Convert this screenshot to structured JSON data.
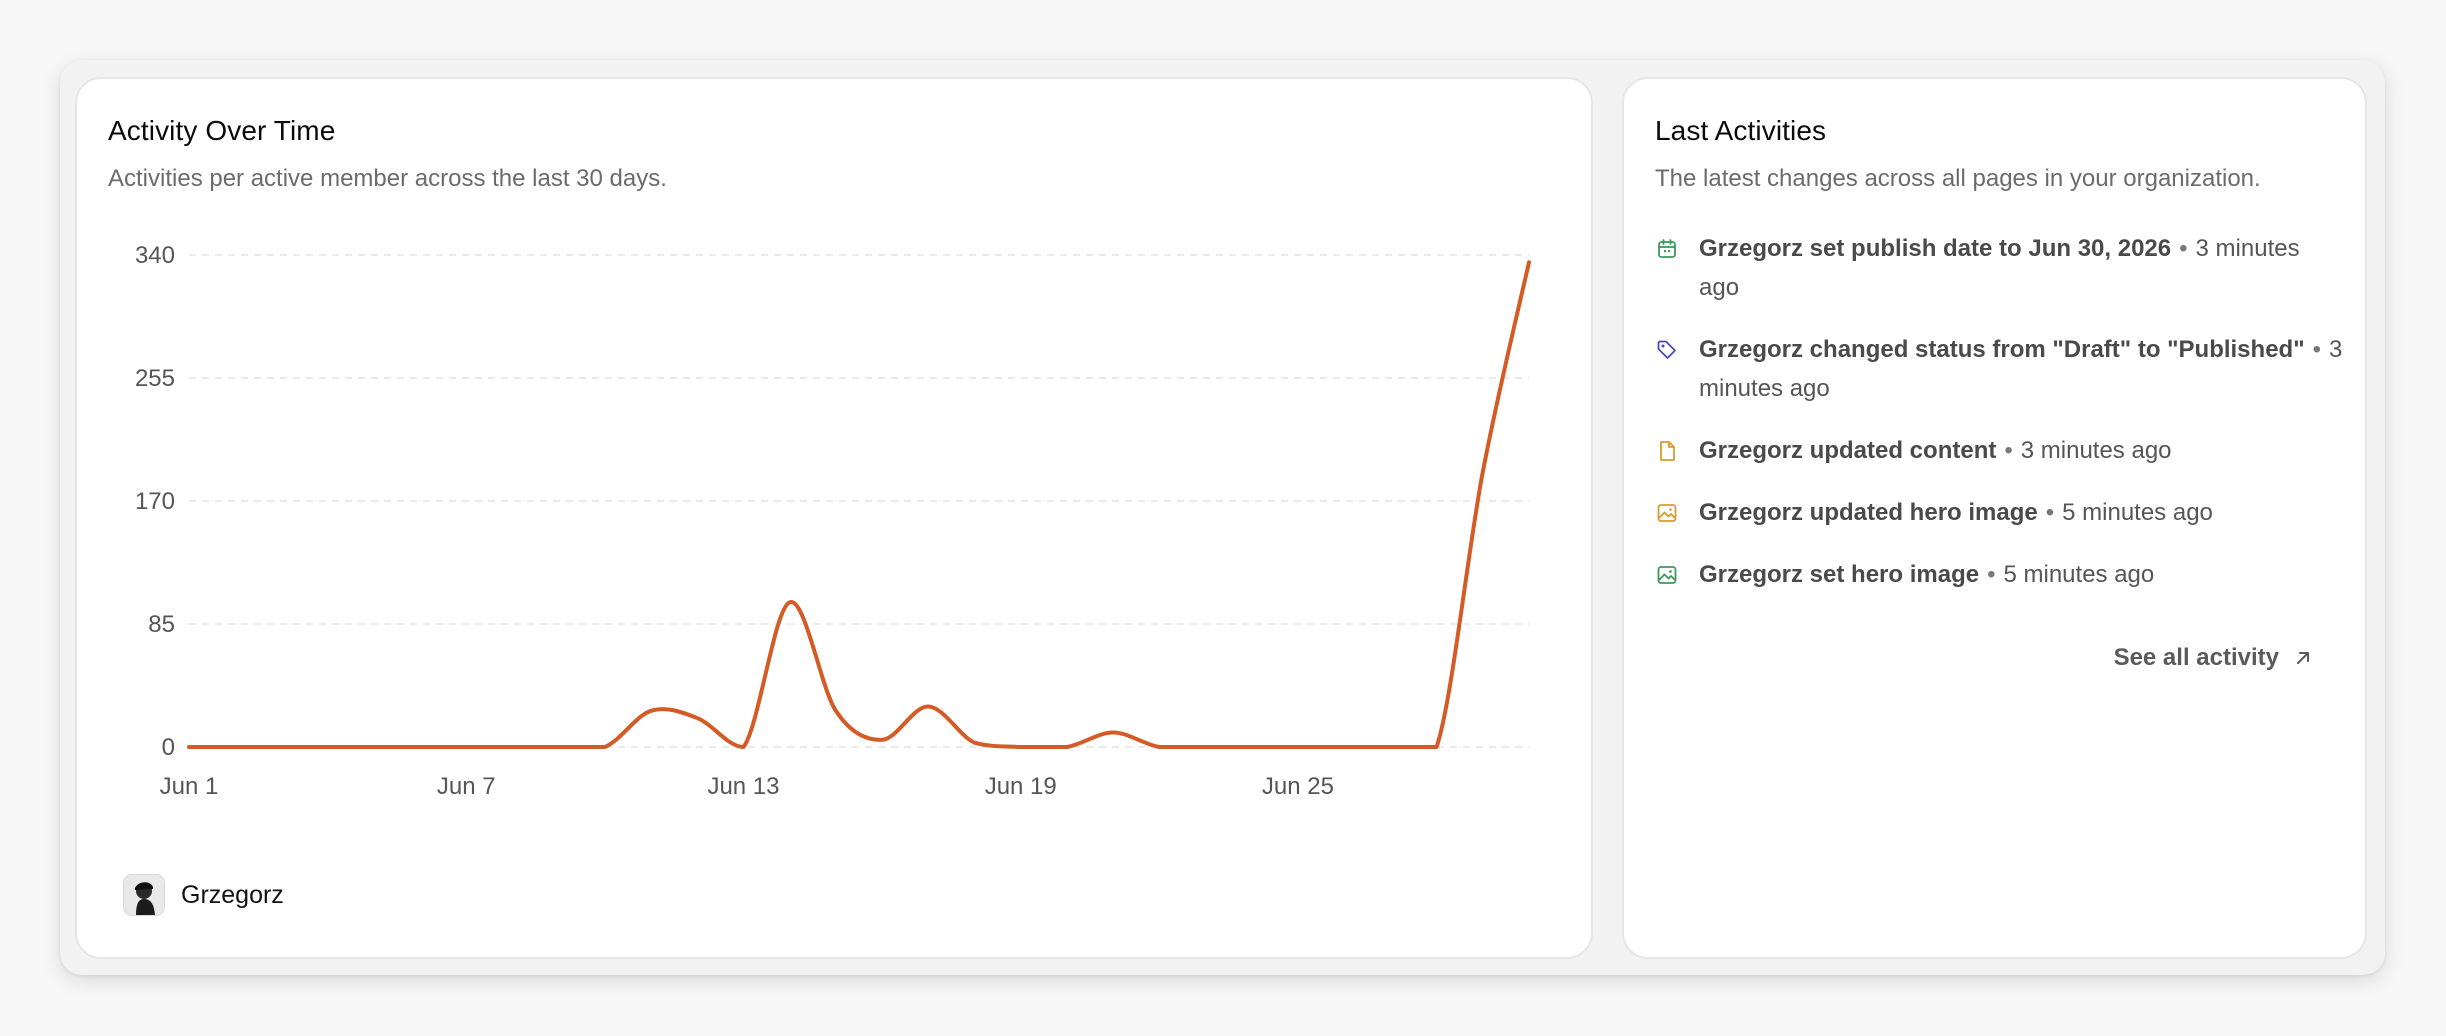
{
  "activity_card": {
    "title": "Activity Over Time",
    "subtitle": "Activities per active member across the last 30 days.",
    "member": {
      "name": "Grzegorz"
    }
  },
  "colors": {
    "line": "#d45a26",
    "grid": "#e3e3e3",
    "calendar_icon": "#3a9a5c",
    "tag_icon": "#4b4bb5",
    "file_icon": "#d99a2b",
    "image_icon_updated": "#d99a2b",
    "image_icon_set": "#3a9a5c"
  },
  "chart_data": {
    "type": "line",
    "title": "",
    "xlabel": "",
    "ylabel": "",
    "ylim": [
      0,
      340
    ],
    "yticks": [
      0,
      85,
      170,
      255,
      340
    ],
    "xticks": [
      "Jun 1",
      "Jun 7",
      "Jun 13",
      "Jun 19",
      "Jun 25"
    ],
    "grid": true,
    "series": [
      {
        "name": "Grzegorz",
        "x": [
          1,
          2,
          3,
          4,
          5,
          6,
          7,
          8,
          9,
          10,
          11,
          12,
          13,
          14,
          15,
          16,
          17,
          18,
          19,
          20,
          21,
          22,
          23,
          24,
          25,
          26,
          27,
          28,
          29,
          30
        ],
        "values": [
          0,
          0,
          0,
          0,
          0,
          0,
          0,
          0,
          0,
          0,
          25,
          20,
          0,
          100,
          25,
          5,
          28,
          3,
          0,
          0,
          10,
          0,
          0,
          0,
          0,
          0,
          0,
          0,
          190,
          335
        ]
      }
    ]
  },
  "last_card": {
    "title": "Last Activities",
    "subtitle": "The latest changes across all pages in your organization.",
    "items": [
      {
        "icon": "calendar-icon",
        "text": "Grzegorz set publish date to Jun 30, 2026",
        "sep": "•",
        "time": "3 minutes ago"
      },
      {
        "icon": "tag-icon",
        "text": "Grzegorz changed status from \"Draft\" to \"Published\"",
        "sep": "•",
        "time": "3 minutes ago"
      },
      {
        "icon": "file-icon",
        "text": "Grzegorz updated content",
        "sep": "•",
        "time": "3 minutes ago"
      },
      {
        "icon": "image-icon",
        "text": "Grzegorz updated hero image",
        "sep": "•",
        "time": "5 minutes ago"
      },
      {
        "icon": "image-icon",
        "text": "Grzegorz set hero image",
        "sep": "•",
        "time": "5 minutes ago"
      }
    ],
    "see_all": "See all activity"
  }
}
